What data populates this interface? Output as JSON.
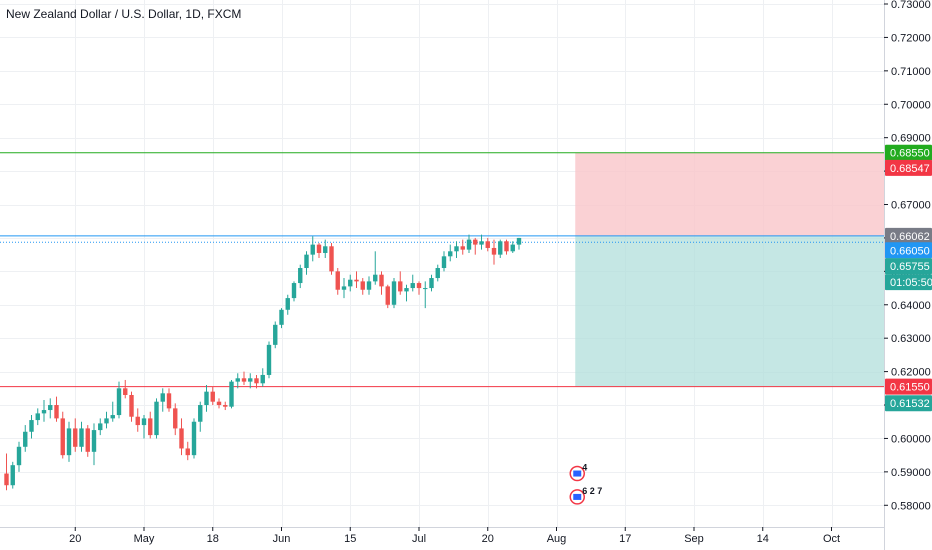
{
  "chart_data": {
    "type": "candlestick",
    "title": "New Zealand Dollar / U.S. Dollar, 1D, FXCM",
    "y_range": [
      0.5735,
      0.7312
    ],
    "y_ticks": [
      "0.73000",
      "0.72000",
      "0.71000",
      "0.70000",
      "0.69000",
      "0.68000",
      "0.67000",
      "0.66000",
      "0.65000",
      "0.64000",
      "0.63000",
      "0.62000",
      "0.61000",
      "0.60000",
      "0.59000",
      "0.58000"
    ],
    "x_ticks": [
      "20",
      "May",
      "18",
      "Jun",
      "15",
      "Jul",
      "20",
      "Aug",
      "17",
      "Sep",
      "14",
      "Oct"
    ],
    "x_tick_days": [
      11,
      22,
      33,
      44,
      55,
      66,
      77,
      88,
      99,
      110,
      121,
      132
    ],
    "candles": [
      [
        0.5895,
        0.5955,
        0.5845,
        0.586
      ],
      [
        0.586,
        0.593,
        0.585,
        0.592
      ],
      [
        0.592,
        0.599,
        0.59,
        0.5975
      ],
      [
        0.5975,
        0.604,
        0.596,
        0.602
      ],
      [
        0.602,
        0.607,
        0.6,
        0.6055
      ],
      [
        0.6055,
        0.609,
        0.604,
        0.6075
      ],
      [
        0.6075,
        0.6115,
        0.605,
        0.6085
      ],
      [
        0.6085,
        0.612,
        0.606,
        0.61
      ],
      [
        0.61,
        0.6125,
        0.605,
        0.606
      ],
      [
        0.606,
        0.608,
        0.594,
        0.595
      ],
      [
        0.595,
        0.605,
        0.593,
        0.603
      ],
      [
        0.603,
        0.606,
        0.596,
        0.5975
      ],
      [
        0.5975,
        0.605,
        0.596,
        0.603
      ],
      [
        0.603,
        0.604,
        0.5945,
        0.596
      ],
      [
        0.596,
        0.6045,
        0.592,
        0.6025
      ],
      [
        0.6025,
        0.606,
        0.601,
        0.6045
      ],
      [
        0.6045,
        0.608,
        0.603,
        0.606
      ],
      [
        0.606,
        0.611,
        0.605,
        0.607
      ],
      [
        0.607,
        0.617,
        0.606,
        0.615
      ],
      [
        0.615,
        0.6175,
        0.612,
        0.613
      ],
      [
        0.613,
        0.614,
        0.605,
        0.6065
      ],
      [
        0.6065,
        0.609,
        0.602,
        0.604
      ],
      [
        0.604,
        0.607,
        0.6,
        0.606
      ],
      [
        0.606,
        0.608,
        0.6,
        0.601
      ],
      [
        0.601,
        0.612,
        0.6,
        0.611
      ],
      [
        0.611,
        0.615,
        0.608,
        0.6135
      ],
      [
        0.6135,
        0.615,
        0.608,
        0.609
      ],
      [
        0.609,
        0.6105,
        0.601,
        0.603
      ],
      [
        0.603,
        0.606,
        0.595,
        0.597
      ],
      [
        0.597,
        0.599,
        0.5935,
        0.595
      ],
      [
        0.595,
        0.606,
        0.594,
        0.605
      ],
      [
        0.605,
        0.611,
        0.602,
        0.61
      ],
      [
        0.61,
        0.616,
        0.608,
        0.614
      ],
      [
        0.614,
        0.6155,
        0.61,
        0.611
      ],
      [
        0.611,
        0.612,
        0.609,
        0.61
      ],
      [
        0.61,
        0.611,
        0.6085,
        0.6095
      ],
      [
        0.6095,
        0.6175,
        0.609,
        0.617
      ],
      [
        0.617,
        0.6195,
        0.615,
        0.618
      ],
      [
        0.618,
        0.62,
        0.616,
        0.617
      ],
      [
        0.617,
        0.6195,
        0.615,
        0.618
      ],
      [
        0.618,
        0.619,
        0.615,
        0.6165
      ],
      [
        0.6165,
        0.621,
        0.6155,
        0.619
      ],
      [
        0.619,
        0.629,
        0.618,
        0.628
      ],
      [
        0.628,
        0.635,
        0.627,
        0.634
      ],
      [
        0.634,
        0.639,
        0.633,
        0.6385
      ],
      [
        0.6385,
        0.643,
        0.637,
        0.642
      ],
      [
        0.642,
        0.647,
        0.641,
        0.6465
      ],
      [
        0.6465,
        0.652,
        0.645,
        0.651
      ],
      [
        0.651,
        0.656,
        0.649,
        0.655
      ],
      [
        0.655,
        0.6605,
        0.653,
        0.658
      ],
      [
        0.658,
        0.6585,
        0.654,
        0.6555
      ],
      [
        0.6555,
        0.6595,
        0.654,
        0.6575
      ],
      [
        0.6575,
        0.6585,
        0.649,
        0.65
      ],
      [
        0.65,
        0.651,
        0.643,
        0.6445
      ],
      [
        0.6445,
        0.648,
        0.642,
        0.6455
      ],
      [
        0.6455,
        0.649,
        0.644,
        0.6475
      ],
      [
        0.6475,
        0.65,
        0.645,
        0.647
      ],
      [
        0.647,
        0.648,
        0.643,
        0.6445
      ],
      [
        0.6445,
        0.6485,
        0.643,
        0.647
      ],
      [
        0.647,
        0.656,
        0.646,
        0.649
      ],
      [
        0.649,
        0.65,
        0.643,
        0.6455
      ],
      [
        0.6455,
        0.646,
        0.639,
        0.64
      ],
      [
        0.64,
        0.648,
        0.639,
        0.647
      ],
      [
        0.647,
        0.65,
        0.643,
        0.644
      ],
      [
        0.644,
        0.646,
        0.641,
        0.645
      ],
      [
        0.645,
        0.649,
        0.644,
        0.6465
      ],
      [
        0.6465,
        0.647,
        0.643,
        0.645
      ],
      [
        0.645,
        0.647,
        0.639,
        0.645
      ],
      [
        0.645,
        0.649,
        0.644,
        0.648
      ],
      [
        0.648,
        0.652,
        0.647,
        0.651
      ],
      [
        0.651,
        0.656,
        0.65,
        0.6545
      ],
      [
        0.6545,
        0.658,
        0.653,
        0.656
      ],
      [
        0.656,
        0.659,
        0.654,
        0.6575
      ],
      [
        0.6575,
        0.6595,
        0.655,
        0.6565
      ],
      [
        0.6565,
        0.661,
        0.6555,
        0.6595
      ],
      [
        0.6595,
        0.66,
        0.655,
        0.658
      ],
      [
        0.658,
        0.661,
        0.6565,
        0.659
      ],
      [
        0.659,
        0.66,
        0.656,
        0.657
      ],
      [
        0.657,
        0.6595,
        0.652,
        0.655
      ],
      [
        0.655,
        0.6595,
        0.654,
        0.659
      ],
      [
        0.659,
        0.6595,
        0.655,
        0.656
      ],
      [
        0.656,
        0.659,
        0.6555,
        0.658
      ],
      [
        0.658,
        0.66,
        0.6565,
        0.66
      ]
    ],
    "lines": {
      "take_profit_top": 0.6855,
      "entry": 0.6606,
      "current": 0.6605,
      "stop_bottom": 0.6155
    },
    "position_box": {
      "start_day": 91,
      "end_day": 150,
      "top": 0.6855,
      "entry": 0.6606,
      "bottom": 0.6155
    },
    "price_tags": [
      {
        "label": "0.68550",
        "value": 0.6855,
        "bg": "#22ab1f"
      },
      {
        "label": "0.68547",
        "value": 0.68547,
        "bg": "#f23645",
        "offset": 15
      },
      {
        "label": "0.66062",
        "value": 0.66062,
        "bg": "#787b86"
      },
      {
        "label": "0.66050",
        "value": 0.6605,
        "bg": "#2196f3",
        "offset": 14
      },
      {
        "label": "0.65755",
        "value": 0.65755,
        "bg": "#26a69a",
        "offset": 20
      },
      {
        "label": "01:05:50",
        "value": 0.65755,
        "bg": "#26a69a",
        "offset": 36
      },
      {
        "label": "0.61550",
        "value": 0.6155,
        "bg": "#f23645"
      },
      {
        "label": "0.61532",
        "value": 0.61532,
        "bg": "#26a69a",
        "offset": 16
      }
    ],
    "event_icons": [
      {
        "label": "4",
        "day": 91,
        "value": 0.5895
      },
      {
        "label": "6 2 7",
        "day": 91,
        "value": 0.5825
      }
    ],
    "colors": {
      "up": "#26a69a",
      "down": "#ef5350",
      "tp_line": "#22ab1f",
      "entry_line": "#2196f3",
      "sl_line": "#f23645",
      "profit_fill": "#b2dfdb",
      "loss_fill": "#f9c6c9"
    }
  }
}
